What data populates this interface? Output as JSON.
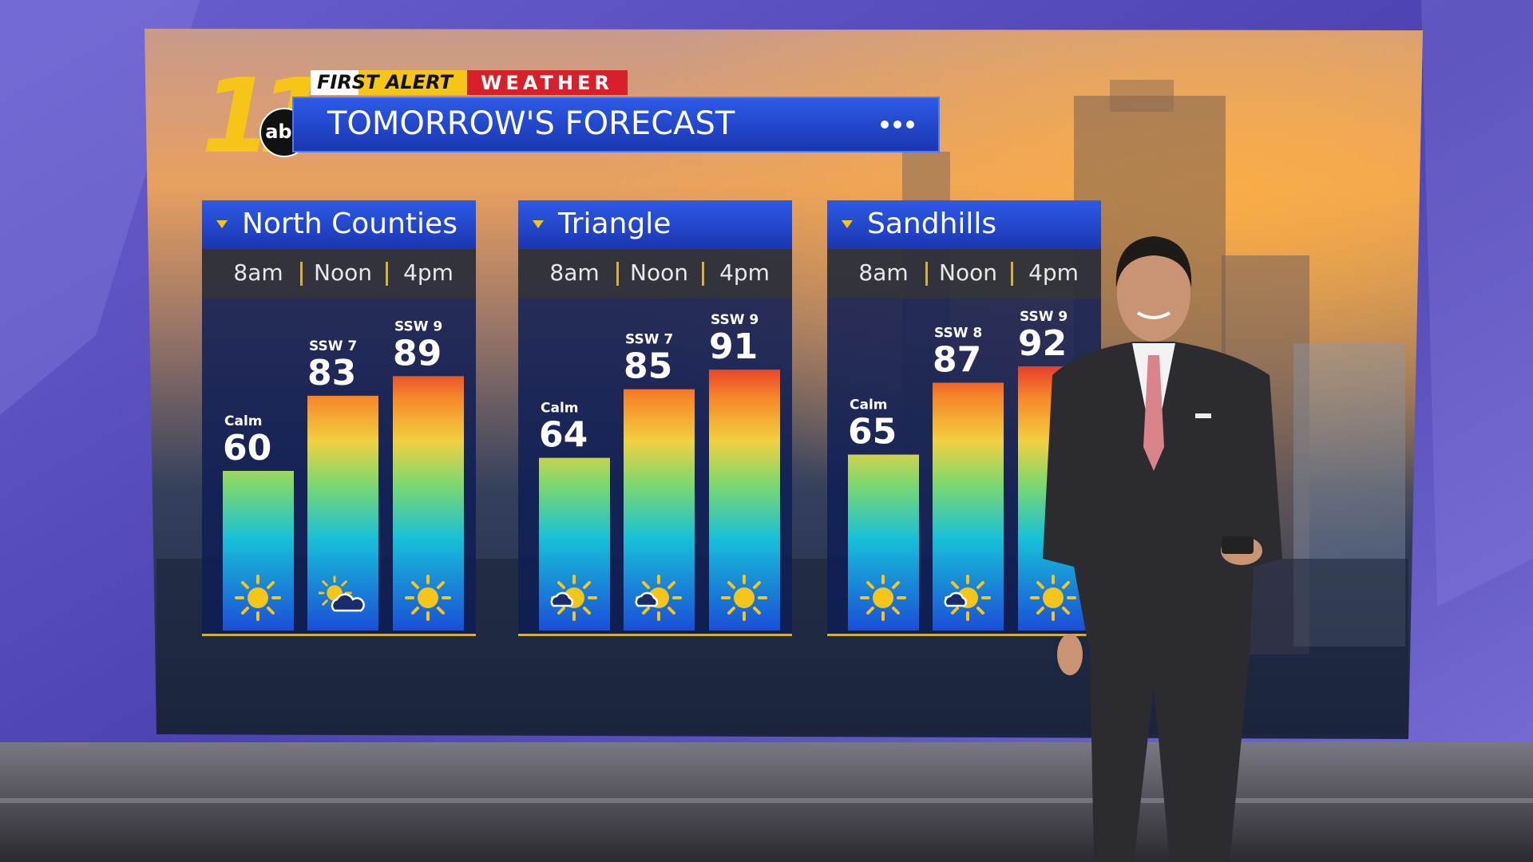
{
  "header": {
    "channel": "11",
    "station": "abc",
    "brand": "FIRST ALERT",
    "brand2": "WEATHER",
    "title": "TOMORROW'S FORECAST"
  },
  "chart_data": [
    {
      "type": "bar",
      "title": "North Counties",
      "categories": [
        "8am",
        "Noon",
        "4pm"
      ],
      "values": [
        60,
        83,
        89
      ],
      "wind": [
        "Calm",
        "SSW 7",
        "SSW 9"
      ]
    },
    {
      "type": "bar",
      "title": "Triangle",
      "categories": [
        "8am",
        "Noon",
        "4pm"
      ],
      "values": [
        64,
        85,
        91
      ],
      "wind": [
        "Calm",
        "SSW 7",
        "SSW 9"
      ]
    },
    {
      "type": "bar",
      "title": "Sandhills",
      "categories": [
        "8am",
        "Noon",
        "4pm"
      ],
      "values": [
        65,
        87,
        92
      ],
      "wind": [
        "Calm",
        "SSW 8",
        "SSW 9"
      ]
    }
  ]
}
